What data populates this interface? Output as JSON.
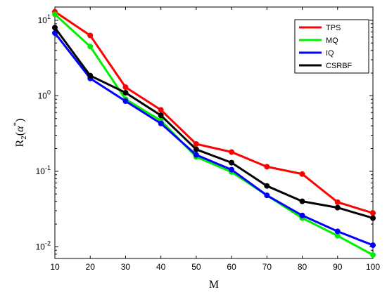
{
  "chart_data": {
    "type": "line",
    "xlabel": "M",
    "ylabel": "R2(α*)",
    "x": [
      10,
      20,
      30,
      40,
      50,
      60,
      70,
      80,
      90,
      100
    ],
    "xlim": [
      10,
      100
    ],
    "ylim": [
      0.007,
      15
    ],
    "yscale": "log",
    "xticks": [
      "10",
      "20",
      "30",
      "40",
      "50",
      "60",
      "70",
      "80",
      "90",
      "100"
    ],
    "yticks": [
      {
        "base": "10",
        "exp": "-2",
        "value": 0.01
      },
      {
        "base": "10",
        "exp": "-1",
        "value": 0.1
      },
      {
        "base": "10",
        "exp": "0",
        "value": 1
      },
      {
        "base": "10",
        "exp": "1",
        "value": 10
      }
    ],
    "grid": false,
    "legend_position": "top-right",
    "series": [
      {
        "name": "TPS",
        "color": "#ff0000",
        "values": [
          13.0,
          6.3,
          1.3,
          0.65,
          0.23,
          0.18,
          0.115,
          0.092,
          0.039,
          0.028
        ]
      },
      {
        "name": "MQ",
        "color": "#00ee00",
        "values": [
          12.0,
          4.5,
          0.9,
          0.47,
          0.155,
          0.098,
          0.048,
          0.024,
          0.014,
          0.0078
        ]
      },
      {
        "name": "IQ",
        "color": "#0000ff",
        "values": [
          6.8,
          1.7,
          0.85,
          0.43,
          0.165,
          0.105,
          0.048,
          0.026,
          0.016,
          0.0105
        ]
      },
      {
        "name": "CSRBF",
        "color": "#000000",
        "values": [
          8.0,
          1.85,
          1.1,
          0.55,
          0.195,
          0.13,
          0.064,
          0.04,
          0.033,
          0.024
        ]
      }
    ]
  }
}
